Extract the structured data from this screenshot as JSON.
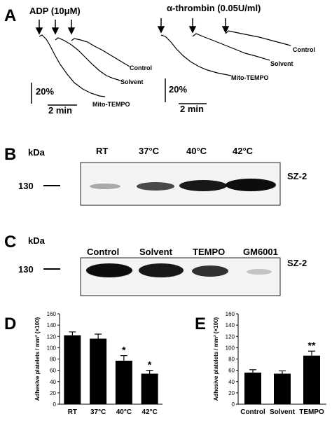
{
  "panel_a": {
    "label": "A",
    "left": {
      "title": "ADP (10μM)",
      "traces": [
        "Control",
        "Solvent",
        "Mito-TEMPO"
      ],
      "scale_y": "20%",
      "scale_x": "2 min"
    },
    "right": {
      "title": "α-thrombin (0.05U/ml)",
      "traces": [
        "Control",
        "Solvent",
        "Mito-TEMPO"
      ],
      "scale_y": "20%",
      "scale_x": "2 min"
    }
  },
  "panel_b": {
    "label": "B",
    "unit": "kDa",
    "lanes": [
      "RT",
      "37°C",
      "40°C",
      "42°C"
    ],
    "marker": "130",
    "protein": "SZ-2"
  },
  "panel_c": {
    "label": "C",
    "unit": "kDa",
    "lanes": [
      "Control",
      "Solvent",
      "TEMPO",
      "GM6001"
    ],
    "marker": "130",
    "protein": "SZ-2"
  },
  "chart_data": [
    {
      "type": "bar",
      "label": "D",
      "y_label": "Adhesive platelets / mm² (×100)",
      "categories": [
        "RT",
        "37°C",
        "40°C",
        "42°C"
      ],
      "values": [
        122,
        116,
        77,
        54
      ],
      "errors": [
        6,
        8,
        9,
        6
      ],
      "significance": [
        null,
        null,
        "*",
        "*"
      ],
      "color": "#000000",
      "ylim": [
        0,
        160
      ],
      "yticks": [
        0,
        20,
        40,
        60,
        80,
        100,
        120,
        140,
        160
      ]
    },
    {
      "type": "bar",
      "label": "E",
      "y_label": "Adhesive platelets / mm² (×100)",
      "categories": [
        "Control",
        "Solvent",
        "TEMPO"
      ],
      "values": [
        56,
        54,
        86
      ],
      "errors": [
        5,
        5,
        8
      ],
      "significance": [
        null,
        null,
        "**"
      ],
      "color": "#000000",
      "ylim": [
        0,
        160
      ],
      "yticks": [
        0,
        20,
        40,
        60,
        80,
        100,
        120,
        140,
        160
      ]
    }
  ]
}
